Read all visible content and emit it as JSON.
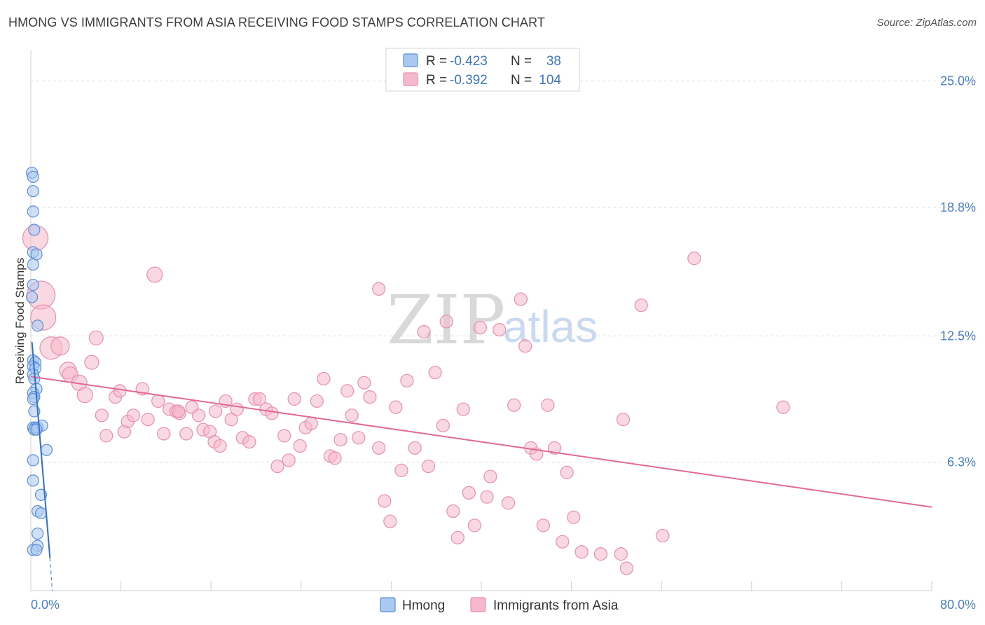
{
  "title": "HMONG VS IMMIGRANTS FROM ASIA RECEIVING FOOD STAMPS CORRELATION CHART",
  "source": "Source: ZipAtlas.com",
  "watermark": {
    "zip": "ZIP",
    "atlas": "atlas"
  },
  "colors": {
    "hmong_fill": "#aac8f0",
    "hmong_stroke": "#5b8fd6",
    "hmong_line": "#2f6fcb",
    "asia_fill": "#f6b8cb",
    "asia_stroke": "#e890ad",
    "asia_line": "#e26a95",
    "grid": "#dddddd",
    "tick_text": "#4a7fc8"
  },
  "legend": {
    "rows": [
      {
        "series": "Hmong",
        "r_label": "R =",
        "r_value": "-0.423",
        "n_label": "N =",
        "n_value": "38"
      },
      {
        "series": "Immigrants from Asia",
        "r_label": "R =",
        "r_value": "-0.392",
        "n_label": "N =",
        "n_value": "104"
      }
    ]
  },
  "chart_data": {
    "type": "scatter",
    "title": "HMONG VS IMMIGRANTS FROM ASIA RECEIVING FOOD STAMPS CORRELATION CHART",
    "xlabel": "",
    "ylabel": "Receiving Food Stamps",
    "xlim": [
      0,
      80
    ],
    "ylim": [
      0,
      26.5
    ],
    "x_tick_labels": [
      "0.0%",
      "80.0%"
    ],
    "y_ticks": [
      6.3,
      12.5,
      18.8,
      25.0
    ],
    "y_tick_labels": [
      "6.3%",
      "12.5%",
      "18.8%",
      "25.0%"
    ],
    "grid": true,
    "series": [
      {
        "name": "Hmong",
        "trend": {
          "x1": 0.1,
          "y1": 12.2,
          "x2": 1.7,
          "y2": 1.6,
          "dash_to_x": 1.9,
          "dash_to_y": 0.0
        },
        "points": [
          [
            0.1,
            20.5
          ],
          [
            0.2,
            20.3
          ],
          [
            0.2,
            19.6
          ],
          [
            0.2,
            18.6
          ],
          [
            0.3,
            17.7
          ],
          [
            0.2,
            16.6
          ],
          [
            0.5,
            16.5
          ],
          [
            0.2,
            16.0
          ],
          [
            0.2,
            15.0
          ],
          [
            0.1,
            14.4
          ],
          [
            0.6,
            13.0
          ],
          [
            0.2,
            11.3
          ],
          [
            0.4,
            11.2
          ],
          [
            0.2,
            11.0
          ],
          [
            0.4,
            10.9
          ],
          [
            0.2,
            10.6
          ],
          [
            0.3,
            10.4
          ],
          [
            0.5,
            9.9
          ],
          [
            0.2,
            9.7
          ],
          [
            0.3,
            9.5
          ],
          [
            0.2,
            9.4
          ],
          [
            0.3,
            8.8
          ],
          [
            0.2,
            8.0
          ],
          [
            0.4,
            8.0
          ],
          [
            0.6,
            8.0
          ],
          [
            1.0,
            8.1
          ],
          [
            0.3,
            7.9
          ],
          [
            0.5,
            7.9
          ],
          [
            1.4,
            6.9
          ],
          [
            0.2,
            6.4
          ],
          [
            0.2,
            5.4
          ],
          [
            0.9,
            4.7
          ],
          [
            0.6,
            3.9
          ],
          [
            0.9,
            3.8
          ],
          [
            0.6,
            2.8
          ],
          [
            0.6,
            2.2
          ],
          [
            0.2,
            2.0
          ],
          [
            0.5,
            2.0
          ]
        ],
        "sizes": [
          8,
          8,
          8,
          8,
          8,
          8,
          8,
          8,
          8,
          8,
          8,
          8,
          8,
          8,
          8,
          8,
          8,
          8,
          8,
          8,
          8,
          8,
          8,
          8,
          8,
          8,
          8,
          8,
          8,
          8,
          8,
          8,
          8,
          8,
          8,
          8,
          8,
          8
        ]
      },
      {
        "name": "Immigrants from Asia",
        "trend": {
          "x1": 0.0,
          "y1": 10.5,
          "x2": 80.0,
          "y2": 4.1
        },
        "points": [
          [
            0.4,
            17.3
          ],
          [
            0.9,
            14.5
          ],
          [
            1.1,
            13.4
          ],
          [
            1.8,
            11.9
          ],
          [
            2.6,
            12.0
          ],
          [
            3.3,
            10.8
          ],
          [
            3.5,
            10.6
          ],
          [
            4.3,
            10.2
          ],
          [
            4.8,
            9.6
          ],
          [
            5.4,
            11.2
          ],
          [
            5.8,
            12.4
          ],
          [
            6.3,
            8.6
          ],
          [
            6.7,
            7.6
          ],
          [
            7.5,
            9.5
          ],
          [
            7.9,
            9.8
          ],
          [
            8.3,
            7.8
          ],
          [
            8.6,
            8.3
          ],
          [
            9.1,
            8.6
          ],
          [
            9.9,
            9.9
          ],
          [
            10.4,
            8.4
          ],
          [
            11.0,
            15.5
          ],
          [
            11.3,
            9.3
          ],
          [
            11.8,
            7.7
          ],
          [
            12.3,
            8.9
          ],
          [
            12.9,
            8.8
          ],
          [
            13.2,
            8.7
          ],
          [
            13.8,
            7.7
          ],
          [
            14.3,
            9.0
          ],
          [
            14.9,
            8.6
          ],
          [
            15.3,
            7.9
          ],
          [
            15.9,
            7.8
          ],
          [
            16.3,
            7.3
          ],
          [
            16.8,
            7.1
          ],
          [
            17.3,
            9.3
          ],
          [
            17.8,
            8.4
          ],
          [
            18.3,
            8.9
          ],
          [
            18.8,
            7.5
          ],
          [
            19.4,
            7.3
          ],
          [
            19.9,
            9.4
          ],
          [
            20.3,
            9.4
          ],
          [
            20.9,
            8.9
          ],
          [
            21.4,
            8.7
          ],
          [
            21.9,
            6.1
          ],
          [
            22.5,
            7.6
          ],
          [
            22.9,
            6.4
          ],
          [
            23.4,
            9.4
          ],
          [
            23.9,
            7.1
          ],
          [
            24.4,
            8.0
          ],
          [
            24.9,
            8.2
          ],
          [
            25.4,
            9.3
          ],
          [
            26.0,
            10.4
          ],
          [
            26.6,
            6.6
          ],
          [
            27.0,
            6.5
          ],
          [
            27.5,
            7.4
          ],
          [
            28.1,
            9.8
          ],
          [
            28.5,
            8.6
          ],
          [
            29.1,
            7.5
          ],
          [
            29.6,
            10.2
          ],
          [
            30.1,
            9.5
          ],
          [
            30.9,
            7.0
          ],
          [
            31.4,
            4.4
          ],
          [
            31.9,
            3.4
          ],
          [
            32.4,
            9.0
          ],
          [
            32.9,
            5.9
          ],
          [
            33.4,
            10.3
          ],
          [
            34.1,
            7.0
          ],
          [
            34.9,
            12.7
          ],
          [
            35.3,
            6.1
          ],
          [
            35.9,
            10.7
          ],
          [
            36.6,
            8.1
          ],
          [
            36.9,
            13.2
          ],
          [
            37.5,
            3.9
          ],
          [
            37.9,
            2.6
          ],
          [
            38.4,
            8.9
          ],
          [
            38.9,
            4.8
          ],
          [
            39.4,
            3.2
          ],
          [
            39.9,
            12.9
          ],
          [
            40.5,
            4.6
          ],
          [
            40.8,
            5.6
          ],
          [
            41.6,
            12.8
          ],
          [
            42.4,
            4.3
          ],
          [
            42.9,
            9.1
          ],
          [
            43.5,
            14.3
          ],
          [
            43.9,
            12.0
          ],
          [
            44.4,
            7.0
          ],
          [
            44.9,
            6.7
          ],
          [
            45.5,
            3.2
          ],
          [
            45.9,
            9.1
          ],
          [
            46.5,
            7.0
          ],
          [
            47.2,
            2.4
          ],
          [
            47.6,
            5.8
          ],
          [
            48.2,
            3.6
          ],
          [
            48.9,
            1.9
          ],
          [
            50.6,
            1.8
          ],
          [
            52.4,
            1.8
          ],
          [
            52.6,
            8.4
          ],
          [
            52.9,
            1.1
          ],
          [
            54.2,
            14.0
          ],
          [
            56.1,
            2.7
          ],
          [
            58.9,
            16.3
          ],
          [
            66.8,
            9.0
          ],
          [
            30.9,
            14.8
          ],
          [
            13.1,
            8.8
          ],
          [
            16.4,
            8.8
          ]
        ],
        "sizes": [
          18,
          20,
          18,
          16,
          13,
          12,
          11,
          11,
          11,
          10,
          10,
          9,
          9,
          9,
          9,
          9,
          9,
          9,
          9,
          9,
          11,
          9,
          9,
          9,
          9,
          9,
          9,
          9,
          9,
          9,
          9,
          9,
          9,
          9,
          9,
          9,
          9,
          9,
          9,
          9,
          9,
          9,
          9,
          9,
          9,
          9,
          9,
          9,
          9,
          9,
          9,
          9,
          9,
          9,
          9,
          9,
          9,
          9,
          9,
          9,
          9,
          9,
          9,
          9,
          9,
          9,
          9,
          9,
          9,
          9,
          9,
          9,
          9,
          9,
          9,
          9,
          9,
          9,
          9,
          9,
          9,
          9,
          9,
          9,
          9,
          9,
          9,
          9,
          9,
          9,
          9,
          9,
          9,
          9,
          9,
          9,
          9,
          9,
          9,
          9,
          9,
          9,
          9,
          9
        ]
      }
    ]
  }
}
